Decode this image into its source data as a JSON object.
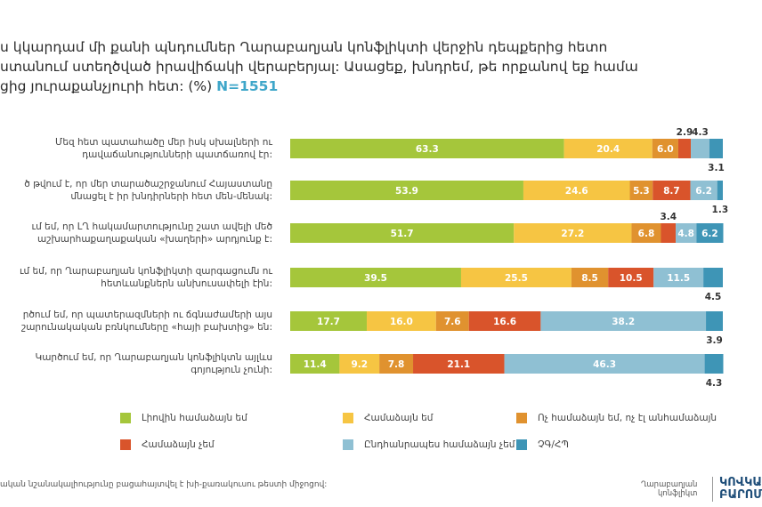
{
  "title": {
    "line1": "ս կկարդամ մի քանի պնդումներ Ղարաբաղյան կոնֆլիկտի վերջին դեպքերից հետո",
    "line2": "ստանում ստեղծված իրավիճակի վերաբերյալ: Ասացեք, խնդրեմ, թե որքանով եք համա",
    "line3": "ցից յուրաքանչյուրի հետ: (%)",
    "n": "N=1551"
  },
  "chart_data": {
    "type": "bar",
    "orientation": "horizontal",
    "stacked": true,
    "xlim": [
      0,
      100
    ],
    "categories": [
      [
        "Մեզ հետ պատահածը մեր իսկ սխալների ու",
        "դավաճանությունների պատճառով էր:"
      ],
      [
        "ծ թվում է, որ մեր տարածաշրջանում Հայաստանը",
        "մնացել է իր խնդիրների հետ մեն-մենակ:"
      ],
      [
        "ւմ եմ, որ ԼՂ հակամարտությունը շատ ավելի մեծ",
        "աշխարհաքաղաքական «խաղերի» արդյունք է:"
      ],
      [
        "ւմ եմ, որ Ղարաբաղյան կոնֆլիկտի զարգացումն ու",
        "հետևանքներն անխուսափելի էին:"
      ],
      [
        "րծում եմ, որ պատերազմների ու ճգնաժամերի այս",
        "շարունակական բռնկումները «հայի բախտից» են:"
      ],
      [
        "Կարծում եմ, որ Ղարաբաղյան կոնֆլիկտն այլևս",
        "գոյություն չունի:"
      ]
    ],
    "series": [
      {
        "name": "Լիովին համաձայն եմ",
        "color": "#a5c63b",
        "values": [
          63.3,
          53.9,
          51.7,
          39.5,
          17.7,
          11.4
        ]
      },
      {
        "name": "Համաձայն եմ",
        "color": "#f6c543",
        "values": [
          20.4,
          24.6,
          27.2,
          25.5,
          16.0,
          9.2
        ]
      },
      {
        "name": "Ոչ համաձայն եմ, ոչ էլ անհամաձայն",
        "color": "#e0922f",
        "values": [
          6.0,
          5.3,
          6.8,
          8.5,
          7.6,
          7.8
        ]
      },
      {
        "name": "Համաձայն չեմ",
        "color": "#d9542b",
        "values": [
          2.9,
          8.7,
          3.4,
          10.5,
          16.6,
          21.1
        ]
      },
      {
        "name": "Ընդհանրապես համաձայն չեմ",
        "color": "#8fc0d3",
        "values": [
          4.3,
          6.2,
          4.8,
          11.5,
          38.2,
          46.3
        ]
      },
      {
        "name": "ՉԳ/ՀՊ",
        "color": "#3e95b6",
        "values": [
          3.1,
          1.3,
          6.2,
          4.5,
          3.9,
          4.3
        ]
      }
    ]
  },
  "footnote": "ական նշանակալիությունը բացահայտվել է խի-քառակուսու թեստի միջոցով:",
  "brand": {
    "left_line1": "Ղարաբաղյան",
    "left_line2": "կոնֆլիկտ",
    "right_line1": "ԿՈՎԿԱՍ",
    "right_line2": "ԲԱՐՈՄ"
  }
}
